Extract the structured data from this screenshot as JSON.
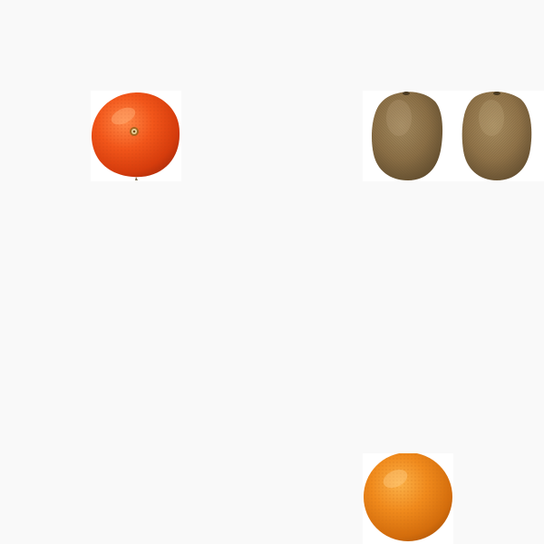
{
  "scene": {
    "background_color": "#f9f9f9",
    "tile_color": "#ffffff",
    "items": [
      {
        "kind": "mandarin-orange",
        "color": "#f2561a"
      },
      {
        "kind": "kiwi",
        "color": "#8a6e45"
      },
      {
        "kind": "kiwi",
        "color": "#8a6e45"
      },
      {
        "kind": "orange",
        "color": "#f08a1c"
      }
    ]
  }
}
